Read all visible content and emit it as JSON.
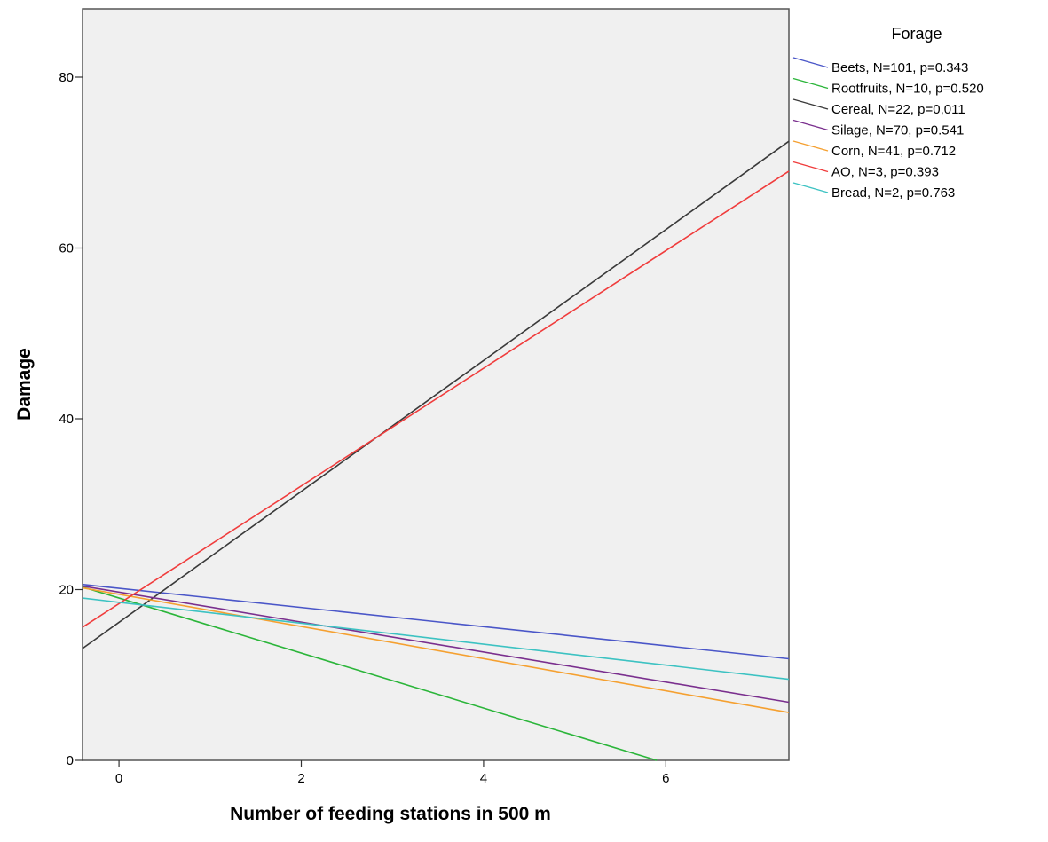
{
  "chart_data": {
    "type": "line",
    "title": "",
    "xlabel": "Number of feeding stations in 500 m",
    "ylabel": "Damage",
    "xlim": [
      -0.4,
      7.35
    ],
    "ylim": [
      0,
      88
    ],
    "x_ticks": [
      0,
      2,
      4,
      6
    ],
    "y_ticks": [
      0,
      20,
      40,
      60,
      80
    ],
    "grid": false,
    "legend_position": "right",
    "legend_title": "Forage",
    "series": [
      {
        "name": "Beets, N=101, p=0.343",
        "color": "#4a56c8",
        "x": [
          -0.4,
          7.35
        ],
        "y": [
          20.6,
          11.9
        ]
      },
      {
        "name": "Rootfruits, N=10, p=0.520",
        "color": "#2bb53a",
        "x": [
          -0.4,
          5.9
        ],
        "y": [
          20.3,
          0
        ]
      },
      {
        "name": "Cereal, N=22, p=0,011",
        "color": "#3a3a3a",
        "x": [
          -0.4,
          7.35
        ],
        "y": [
          13.1,
          72.5
        ]
      },
      {
        "name": "Silage, N=70, p=0.541",
        "color": "#7a2f8e",
        "x": [
          -0.4,
          7.35
        ],
        "y": [
          20.4,
          6.8
        ]
      },
      {
        "name": "Corn, N=41, p=0.712",
        "color": "#f5a030",
        "x": [
          -0.4,
          7.35
        ],
        "y": [
          20.2,
          5.6
        ]
      },
      {
        "name": "AO, N=3, p=0.393",
        "color": "#f03c3c",
        "x": [
          -0.4,
          7.35
        ],
        "y": [
          15.6,
          69.0
        ]
      },
      {
        "name": "Bread, N=2, p=0.763",
        "color": "#3cc2c2",
        "x": [
          -0.4,
          7.35
        ],
        "y": [
          19.0,
          9.5
        ]
      }
    ]
  }
}
